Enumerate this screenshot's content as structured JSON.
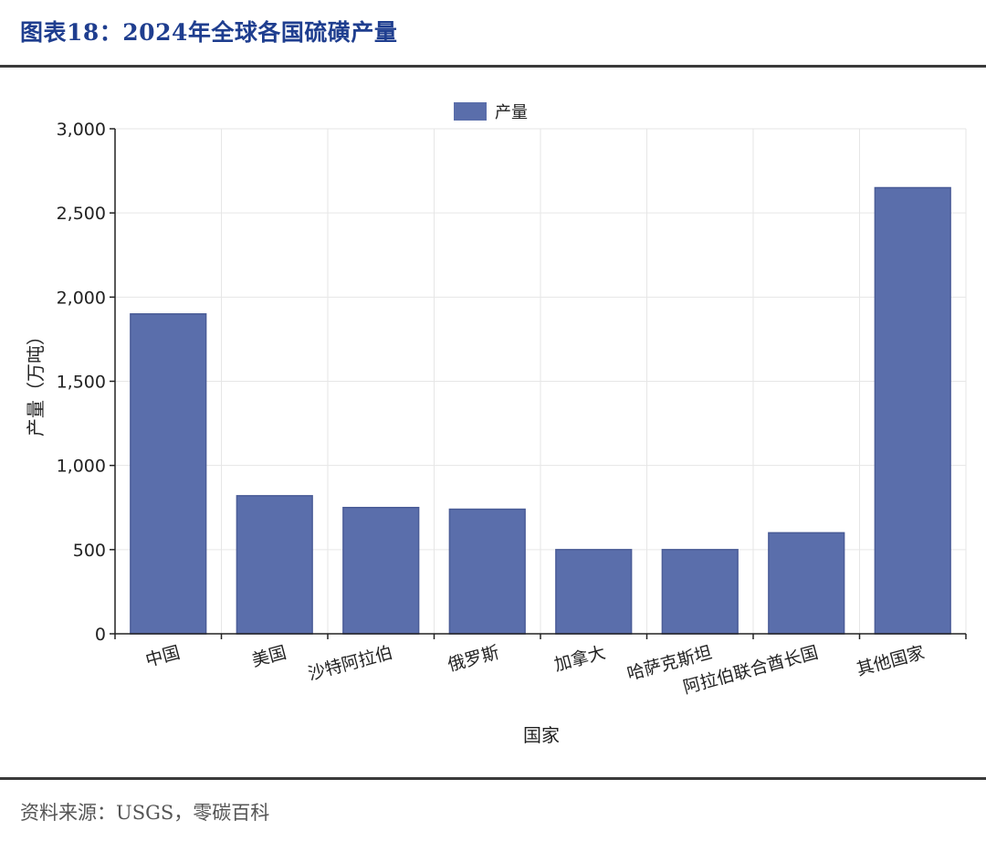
{
  "header": {
    "title": "图表18：2024年全球各国硫磺产量"
  },
  "footer": {
    "source": "资料来源：USGS，零碳百科"
  },
  "colors": {
    "bar": "#5a6eab",
    "bar_edge": "#4a5c97",
    "title": "#1f3e8f",
    "rule": "#3a3a3a",
    "grid": "#e6e6e6"
  },
  "chart_data": {
    "type": "bar",
    "categories": [
      "中国",
      "美国",
      "沙特阿拉伯",
      "俄罗斯",
      "加拿大",
      "哈萨克斯坦",
      "阿拉伯联合酋长国",
      "其他国家"
    ],
    "series": [
      {
        "name": "产量",
        "values": [
          1900,
          820,
          750,
          740,
          500,
          500,
          600,
          2650
        ]
      }
    ],
    "xlabel": "国家",
    "ylabel": "产量（万吨）",
    "ylim": [
      0,
      3000
    ],
    "yticks": [
      0,
      500,
      1000,
      1500,
      2000,
      2500,
      3000
    ],
    "ytick_labels": [
      "0",
      "500",
      "1,000",
      "1,500",
      "2,000",
      "2,500",
      "3,000"
    ],
    "grid": true,
    "legend_position": "top-center"
  }
}
